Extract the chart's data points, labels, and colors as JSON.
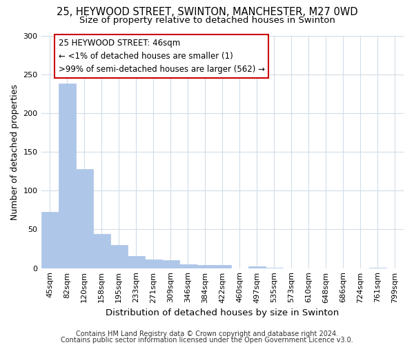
{
  "title1": "25, HEYWOOD STREET, SWINTON, MANCHESTER, M27 0WD",
  "title2": "Size of property relative to detached houses in Swinton",
  "xlabel": "Distribution of detached houses by size in Swinton",
  "ylabel": "Number of detached properties",
  "categories": [
    "45sqm",
    "82sqm",
    "120sqm",
    "158sqm",
    "195sqm",
    "233sqm",
    "271sqm",
    "309sqm",
    "346sqm",
    "384sqm",
    "422sqm",
    "460sqm",
    "497sqm",
    "535sqm",
    "573sqm",
    "610sqm",
    "648sqm",
    "686sqm",
    "724sqm",
    "761sqm",
    "799sqm"
  ],
  "values": [
    73,
    238,
    128,
    44,
    30,
    16,
    11,
    10,
    5,
    4,
    4,
    0,
    2,
    1,
    0,
    0,
    0,
    0,
    0,
    1,
    0
  ],
  "bar_color": "#aec6e8",
  "bar_edge_color": "#aec6e8",
  "annotation_line1": "25 HEYWOOD STREET: 46sqm",
  "annotation_line2": "← <1% of detached houses are smaller (1)",
  "annotation_line3": ">99% of semi-detached houses are larger (562) →",
  "annotation_box_facecolor": "#ffffff",
  "annotation_box_edgecolor": "#cc0000",
  "ylim": [
    0,
    300
  ],
  "yticks": [
    0,
    50,
    100,
    150,
    200,
    250,
    300
  ],
  "footer1": "Contains HM Land Registry data © Crown copyright and database right 2024.",
  "footer2": "Contains public sector information licensed under the Open Government Licence v3.0.",
  "bg_color": "#ffffff",
  "grid_color": "#d0dce8",
  "title1_fontsize": 10.5,
  "title2_fontsize": 9.5,
  "xlabel_fontsize": 9.5,
  "ylabel_fontsize": 9,
  "tick_fontsize": 8,
  "footer_fontsize": 7,
  "annotation_fontsize": 8.5
}
